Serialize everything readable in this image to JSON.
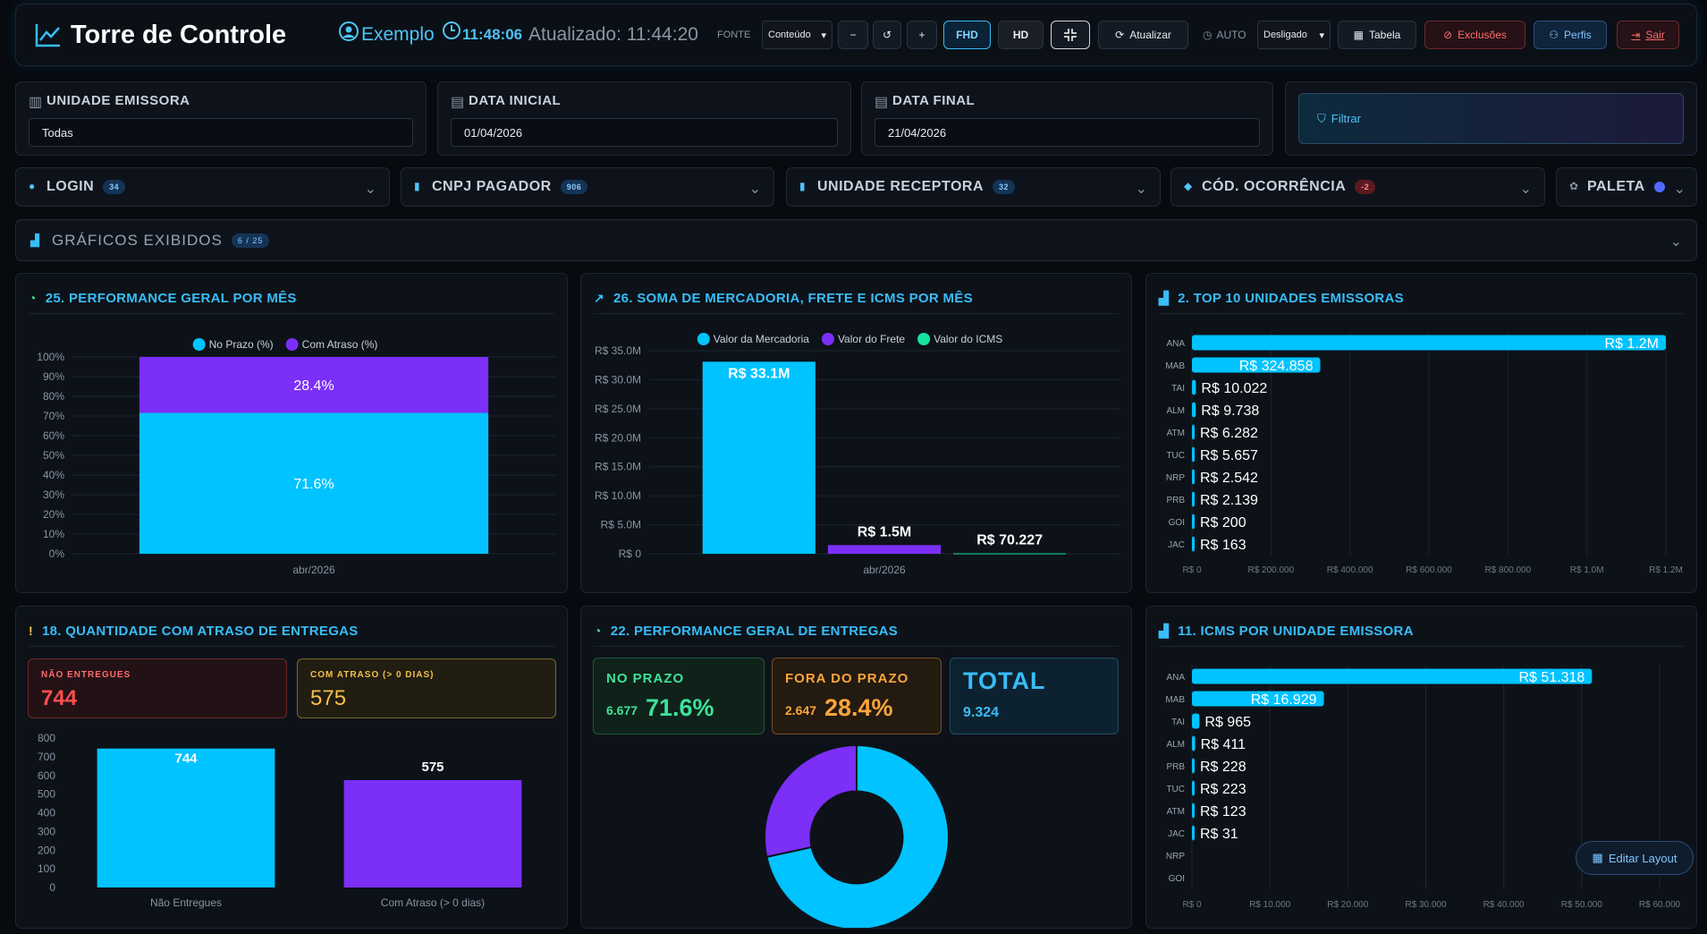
{
  "header": {
    "title": "Torre de Controle",
    "user": "Exemplo",
    "clock": "11:48:06",
    "updated": "Atualizado: 11:44:20",
    "font_label": "FONTE",
    "font_select": "Conteúdo",
    "buttons": [
      "−",
      "↺",
      "+",
      "FHD",
      "HD",
      "Atualizar"
    ],
    "auto_label": "AUTO",
    "auto_select": "Desligado",
    "actions": [
      "Tabela",
      "Exclusões",
      "Perfis",
      "Sair"
    ]
  },
  "filters": [
    {
      "label": "UNIDADE EMISSORA",
      "value": "Todas"
    },
    {
      "label": "DATA INICIAL",
      "value": "01/04/2026"
    },
    {
      "label": "DATA FINAL",
      "value": "21/04/2026"
    }
  ],
  "filter_button": "Filtrar",
  "selectors": [
    {
      "label": "LOGIN",
      "count": 34
    },
    {
      "label": "CNPJ PAGADOR",
      "count": 906
    },
    {
      "label": "UNIDADE RECEPTORA",
      "count": 32
    },
    {
      "label": "CÓD. OCORRÊNCIA",
      "count": -2
    }
  ],
  "palette": "PALETA",
  "charts_shown": {
    "label": "GRÁFICOS EXIBIDOS",
    "count": "6 / 25"
  },
  "edit_layout": "Editar Layout",
  "chart_data": [
    {
      "type": "bar",
      "stacked": true,
      "title": "25. PERFORMANCE GERAL POR MÊS",
      "categories": [
        "abr/2026"
      ],
      "series": [
        {
          "name": "No Prazo (%)",
          "color": "#00c3ff",
          "values": [
            71.6
          ],
          "value_labels": [
            "71.6%"
          ]
        },
        {
          "name": "Com Atraso (%)",
          "color": "#7b2ff7",
          "values": [
            28.4
          ],
          "value_labels": [
            "28.4%"
          ]
        }
      ],
      "ylim": [
        0,
        100
      ],
      "yticks": [
        {
          "value": 0,
          "label": "0%"
        },
        {
          "value": 10,
          "label": "10%"
        },
        {
          "value": 20,
          "label": "20%"
        },
        {
          "value": 30,
          "label": "30%"
        },
        {
          "value": 40,
          "label": "40%"
        },
        {
          "value": 50,
          "label": "50%"
        },
        {
          "value": 60,
          "label": "60%"
        },
        {
          "value": 70,
          "label": "70%"
        },
        {
          "value": 80,
          "label": "80%"
        },
        {
          "value": 90,
          "label": "90%"
        },
        {
          "value": 100,
          "label": "100%"
        }
      ],
      "grid": true,
      "legend": "top"
    },
    {
      "type": "bar",
      "stacked": false,
      "title": "26. SOMA DE MERCADORIA, FRETE E ICMS POR MÊS",
      "categories": [
        "abr/2026"
      ],
      "series": [
        {
          "name": "Valor da Mercadoria",
          "color": "#00c3ff",
          "values": [
            33100000
          ],
          "value_labels": [
            "R$ 33.1M"
          ]
        },
        {
          "name": "Valor do Frete",
          "color": "#7b2ff7",
          "values": [
            1500000
          ],
          "value_labels": [
            "R$ 1.5M"
          ]
        },
        {
          "name": "Valor do ICMS",
          "color": "#14e3a0",
          "values": [
            70227
          ],
          "value_labels": [
            "R$ 70.227"
          ]
        }
      ],
      "ylim": [
        0,
        35000000
      ],
      "yticks": [
        {
          "value": 0,
          "label": "R$ 0"
        },
        {
          "value": 5000000,
          "label": "R$ 5.0M"
        },
        {
          "value": 10000000,
          "label": "R$ 10.0M"
        },
        {
          "value": 15000000,
          "label": "R$ 15.0M"
        },
        {
          "value": 20000000,
          "label": "R$ 20.0M"
        },
        {
          "value": 25000000,
          "label": "R$ 25.0M"
        },
        {
          "value": 30000000,
          "label": "R$ 30.0M"
        },
        {
          "value": 35000000,
          "label": "R$ 35.0M"
        }
      ],
      "grid": true,
      "legend": "top"
    },
    {
      "type": "hbar",
      "title": "2. TOP 10 UNIDADES EMISSORAS",
      "categories": [
        "ANA",
        "MAB",
        "TAI",
        "ALM",
        "ATM",
        "TUC",
        "NRP",
        "PRB",
        "GOI",
        "JAC"
      ],
      "values": [
        1200000,
        324858,
        10022,
        9738,
        6282,
        5657,
        2542,
        2139,
        200,
        163
      ],
      "value_labels": [
        "R$ 1.2M",
        "R$ 324.858",
        "R$ 10.022",
        "R$ 9.738",
        "R$ 6.282",
        "R$ 5.657",
        "R$ 2.542",
        "R$ 2.139",
        "R$ 200",
        "R$ 163"
      ],
      "color": "#00c3ff",
      "xlim": [
        0,
        1200000
      ],
      "xticks": [
        {
          "value": 0,
          "label": "R$ 0"
        },
        {
          "value": 200000,
          "label": "R$ 200.000"
        },
        {
          "value": 400000,
          "label": "R$ 400.000"
        },
        {
          "value": 600000,
          "label": "R$ 600.000"
        },
        {
          "value": 800000,
          "label": "R$ 800.000"
        },
        {
          "value": 1000000,
          "label": "R$ 1.0M"
        },
        {
          "value": 1200000,
          "label": "R$ 1.2M"
        }
      ],
      "grid": true
    },
    {
      "type": "bar",
      "title": "18. QUANTIDADE COM ATRASO DE ENTREGAS",
      "cards": [
        {
          "title": "NÃO ENTREGUES",
          "value": 744
        },
        {
          "title": "COM ATRASO (> 0 DIAS)",
          "value": 575
        }
      ],
      "categories": [
        "Não Entregues",
        "Com Atraso (> 0 dias)"
      ],
      "values": [
        744,
        575
      ],
      "colors": [
        "#00c3ff",
        "#7b2ff7"
      ],
      "ylim": [
        0,
        800
      ],
      "yticks": [
        0,
        100,
        200,
        300,
        400,
        500,
        600,
        700,
        800
      ],
      "grid": false
    },
    {
      "type": "pie",
      "title": "22. PERFORMANCE GERAL DE ENTREGAS",
      "cards": [
        {
          "title": "NO PRAZO",
          "count": "6.677",
          "percent": "71.6%"
        },
        {
          "title": "FORA DO PRAZO",
          "count": "2.647",
          "percent": "28.4%"
        },
        {
          "title": "TOTAL",
          "count": "9.324"
        }
      ],
      "values": [
        71.6,
        28.4
      ],
      "colors": [
        "#00c3ff",
        "#7b2ff7"
      ],
      "hole": 0.5
    },
    {
      "type": "hbar",
      "title": "11. ICMS POR UNIDADE EMISSORA",
      "categories": [
        "ANA",
        "MAB",
        "TAI",
        "ALM",
        "PRB",
        "TUC",
        "ATM",
        "JAC",
        "NRP",
        "GOI"
      ],
      "values": [
        51318,
        16929,
        965,
        411,
        228,
        223,
        123,
        31,
        null,
        null
      ],
      "value_labels": [
        "R$ 51.318",
        "R$ 16.929",
        "R$ 965",
        "R$ 411",
        "R$ 228",
        "R$ 223",
        "R$ 123",
        "R$ 31",
        null,
        null
      ],
      "color": "#00c3ff",
      "xlim": [
        0,
        60000
      ],
      "xticks": [
        {
          "value": 0,
          "label": "R$ 0"
        },
        {
          "value": 10000,
          "label": "R$ 10.000"
        },
        {
          "value": 20000,
          "label": "R$ 20.000"
        },
        {
          "value": 30000,
          "label": "R$ 30.000"
        },
        {
          "value": 40000,
          "label": "R$ 40.000"
        },
        {
          "value": 50000,
          "label": "R$ 50.000"
        },
        {
          "value": 60000,
          "label": "R$ 60.000"
        }
      ],
      "grid": true
    }
  ]
}
